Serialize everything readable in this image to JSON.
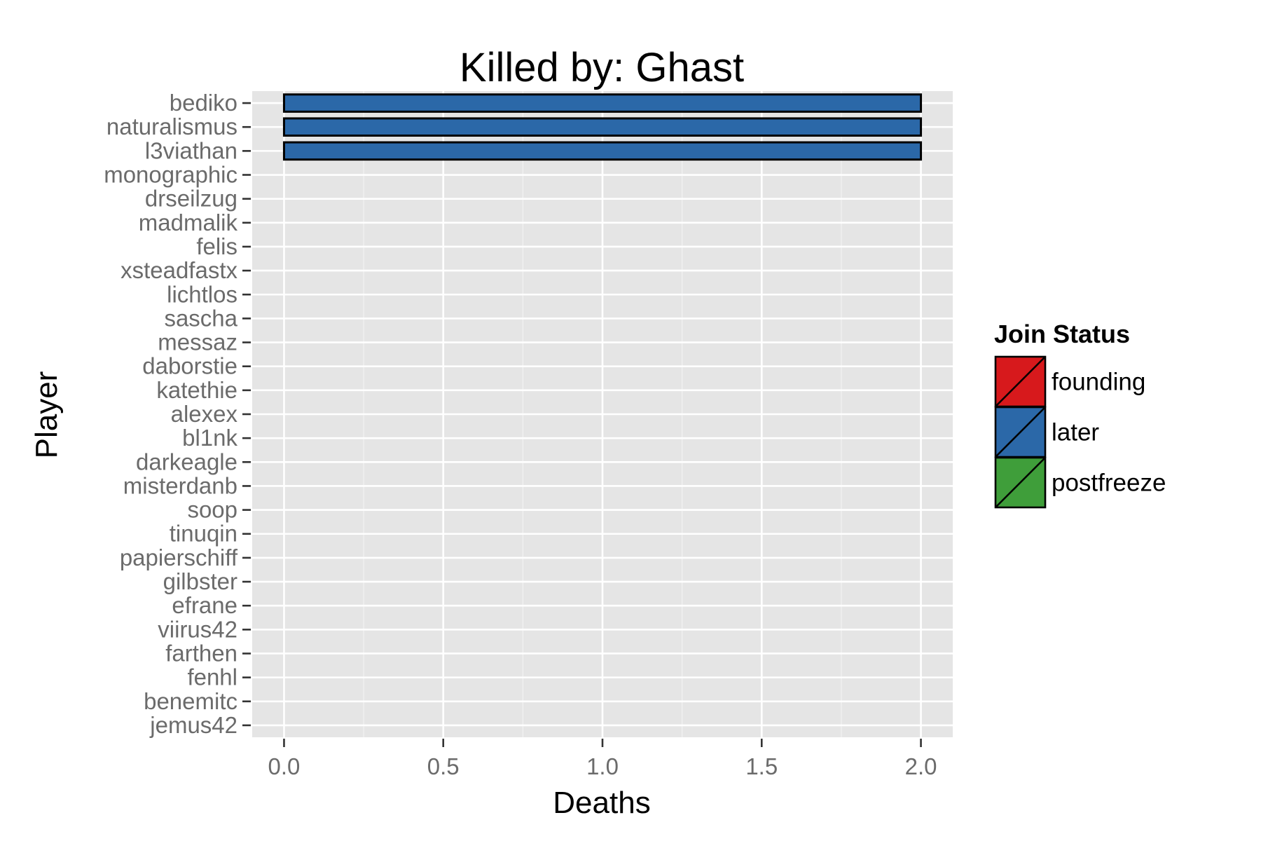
{
  "chart_data": {
    "type": "bar",
    "orientation": "horizontal",
    "title": "Killed by: Ghast",
    "xlabel": "Deaths",
    "ylabel": "Player",
    "xlim": [
      -0.1,
      2.1
    ],
    "x_ticks": [
      "0.0",
      "0.5",
      "1.0",
      "1.5",
      "2.0"
    ],
    "x_tick_values": [
      0,
      0.5,
      1.0,
      1.5,
      2.0
    ],
    "grid": true,
    "legend_position": "right",
    "legend": {
      "title": "Join Status",
      "entries": [
        {
          "label": "founding",
          "color": "#d7191c"
        },
        {
          "label": "later",
          "color": "#2b68a8"
        },
        {
          "label": "postfreeze",
          "color": "#3f9e3a"
        }
      ]
    },
    "categories": [
      "bediko",
      "naturalismus",
      "l3viathan",
      "monographic",
      "drseilzug",
      "madmalik",
      "felis",
      "xsteadfastx",
      "lichtlos",
      "sascha",
      "messaz",
      "daborstie",
      "katethie",
      "alexex",
      "bl1nk",
      "darkeagle",
      "misterdanb",
      "soop",
      "tinuqin",
      "papierschiff",
      "gilbster",
      "efrane",
      "viirus42",
      "farthen",
      "fenhl",
      "benemitc",
      "jemus42"
    ],
    "values": [
      2,
      2,
      2,
      0,
      0,
      0,
      0,
      0,
      0,
      0,
      0,
      0,
      0,
      0,
      0,
      0,
      0,
      0,
      0,
      0,
      0,
      0,
      0,
      0,
      0,
      0,
      0
    ],
    "status": [
      "later",
      "later",
      "later",
      "later",
      "later",
      "later",
      "later",
      "later",
      "later",
      "later",
      "later",
      "later",
      "later",
      "later",
      "later",
      "later",
      "later",
      "later",
      "later",
      "later",
      "later",
      "later",
      "later",
      "later",
      "later",
      "later",
      "later"
    ]
  }
}
